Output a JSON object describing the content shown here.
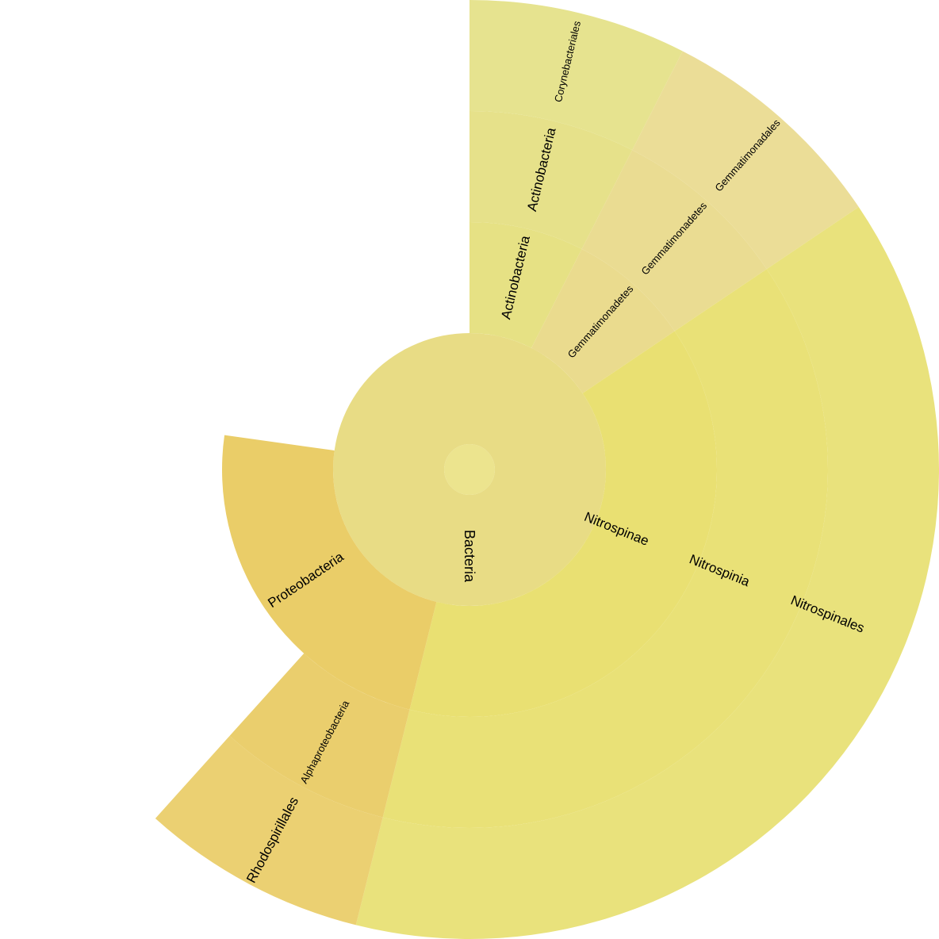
{
  "chart_data": {
    "type": "sunburst",
    "title": "",
    "root": {
      "name": "",
      "color": "#ece48e"
    },
    "levels": [
      "kingdom",
      "phylum",
      "class",
      "order"
    ],
    "nodes": [
      {
        "id": "bacteria",
        "name": "Bacteria",
        "level": 1,
        "parent": null,
        "start_deg": 0,
        "end_deg": 360,
        "color": "#e8dc85",
        "label_size": "large"
      },
      {
        "id": "actinobacteria-phylum",
        "name": "Actinobacteria",
        "level": 2,
        "parent": "bacteria",
        "start_deg": 0,
        "end_deg": 27,
        "color": "#e6e184",
        "label_size": "medium"
      },
      {
        "id": "actinobacteria-class",
        "name": "Actinobacteria",
        "level": 3,
        "parent": "actinobacteria-phylum",
        "start_deg": 0,
        "end_deg": 27,
        "color": "#e6e18a",
        "label_size": "medium"
      },
      {
        "id": "corynebacteriales",
        "name": "Corynebacteriales",
        "level": 4,
        "parent": "actinobacteria-class",
        "start_deg": 0,
        "end_deg": 27,
        "color": "#e6e38f",
        "label_size": "small"
      },
      {
        "id": "gemmatimonadetes-phylum",
        "name": "Gemmatimonadetes",
        "level": 2,
        "parent": "bacteria",
        "start_deg": 27,
        "end_deg": 56,
        "color": "#eadb8e",
        "label_size": "small"
      },
      {
        "id": "gemmatimonadetes-class",
        "name": "Gemmatimonadetes",
        "level": 3,
        "parent": "gemmatimonadetes-phylum",
        "start_deg": 27,
        "end_deg": 56,
        "color": "#eadc92",
        "label_size": "small"
      },
      {
        "id": "gemmatimonadales",
        "name": "Gemmatimonadales",
        "level": 4,
        "parent": "gemmatimonadetes-class",
        "start_deg": 27,
        "end_deg": 56,
        "color": "#ebdd97",
        "label_size": "small"
      },
      {
        "id": "nitrospinae",
        "name": "Nitrospinae",
        "level": 2,
        "parent": "bacteria",
        "start_deg": 56,
        "end_deg": 194,
        "color": "#e9e072",
        "label_size": "medium"
      },
      {
        "id": "nitrospinia",
        "name": "Nitrospinia",
        "level": 3,
        "parent": "nitrospinae",
        "start_deg": 56,
        "end_deg": 194,
        "color": "#e9e177",
        "label_size": "medium"
      },
      {
        "id": "nitrospinales",
        "name": "Nitrospinales",
        "level": 4,
        "parent": "nitrospinia",
        "start_deg": 56,
        "end_deg": 194,
        "color": "#e9e27c",
        "label_size": "medium"
      },
      {
        "id": "proteobacteria",
        "name": "Proteobacteria",
        "level": 2,
        "parent": "bacteria",
        "start_deg": 194,
        "end_deg": 278,
        "color": "#eacd68",
        "label_size": "medium"
      },
      {
        "id": "alphaproteobacteria",
        "name": "Alphaproteobacteria",
        "level": 3,
        "parent": "proteobacteria",
        "start_deg": 194,
        "end_deg": 222,
        "color": "#eace6d",
        "label_size": "small"
      },
      {
        "id": "rhodospirillales",
        "name": "Rhodospirillales",
        "level": 4,
        "parent": "alphaproteobacteria",
        "start_deg": 194,
        "end_deg": 222,
        "color": "#ebd072",
        "label_size": "medium"
      }
    ]
  }
}
